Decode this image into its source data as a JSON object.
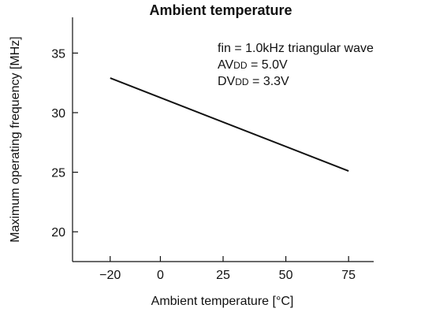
{
  "chart_data": {
    "type": "line",
    "title": "Ambient temperature",
    "xlabel": "Ambient temperature [°C]",
    "ylabel": "Maximum operating frequency [MHz]",
    "xlim": [
      -35,
      85
    ],
    "ylim": [
      17.5,
      38
    ],
    "xticks": [
      -20,
      0,
      25,
      50,
      75
    ],
    "xtick_labels": [
      "−20",
      "0",
      "25",
      "50",
      "75"
    ],
    "yticks": [
      20,
      25,
      30,
      35
    ],
    "ytick_labels": [
      "20",
      "25",
      "30",
      "35"
    ],
    "grid": false,
    "series": [
      {
        "x": [
          -20,
          75
        ],
        "y": [
          32.9,
          25.1
        ]
      }
    ],
    "annotations": [
      {
        "main": "fin = 1.0kHz triangular wave",
        "sub": "",
        "rest": ""
      },
      {
        "main": "AV",
        "sub": "DD",
        "rest": " = 5.0V"
      },
      {
        "main": "DV",
        "sub": "DD",
        "rest": " = 3.3V"
      }
    ],
    "color": "#111111"
  }
}
